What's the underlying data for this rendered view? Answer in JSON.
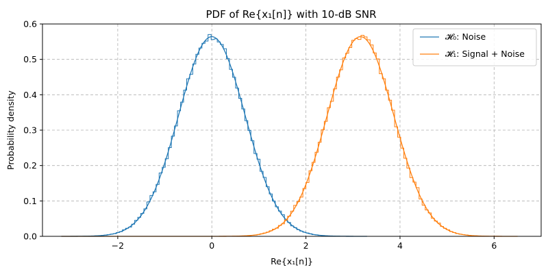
{
  "chart_data": {
    "type": "line",
    "title": "PDF of Re{x₁[n]} with 10-dB SNR",
    "xlabel": "Re{x₁[n]}",
    "ylabel": "Probability density",
    "xlim": [
      -3.6,
      7.0
    ],
    "ylim": [
      0,
      0.6
    ],
    "xticks": [
      -2,
      0,
      2,
      4,
      6
    ],
    "yticks": [
      0.0,
      0.1,
      0.2,
      0.3,
      0.4,
      0.5,
      0.6
    ],
    "xtick_labels": [
      "−2",
      "0",
      "2",
      "4",
      "6"
    ],
    "ytick_labels": [
      "0.0",
      "0.1",
      "0.2",
      "0.3",
      "0.4",
      "0.5",
      "0.6"
    ],
    "grid": true,
    "legend_position": "top-right",
    "series": [
      {
        "name": "𝓗₀: Noise",
        "color": "#1f77b4",
        "style": "line + step histogram",
        "peak_x": 0,
        "peak_density": 0.565,
        "x_range": [
          -3.2,
          3.3
        ]
      },
      {
        "name": "𝓗₁: Signal + Noise",
        "color": "#ff7f0e",
        "style": "line + step histogram",
        "peak_x": 3.16,
        "peak_density": 0.565,
        "x_range": [
          -3.2,
          6.5
        ]
      }
    ]
  }
}
